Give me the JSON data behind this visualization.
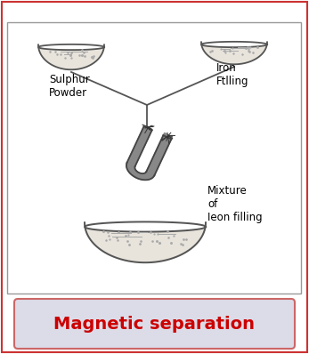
{
  "title": "Magnetic separation",
  "title_color": "#cc0000",
  "title_bg_top": "#e8e8f0",
  "title_bg_bot": "#c8c8d8",
  "title_fontsize": 14,
  "bg_color": "#ffffff",
  "border_color": "#cc3333",
  "diagram_border": "#888888",
  "sulphur_label": "Sulphur\nPowder",
  "iron_label": "Iron\nFtlling",
  "mixture_label": "Mixture\nof\nIeon filling",
  "label_fontsize": 8.5,
  "sketch_color": "#555555",
  "sketch_lw": 1.3,
  "bowl_fill": "#e8e4dc",
  "bowl_content": "#999999",
  "magnet_color": "#888888",
  "magnet_line": "#444444",
  "filing_color": "#333333"
}
